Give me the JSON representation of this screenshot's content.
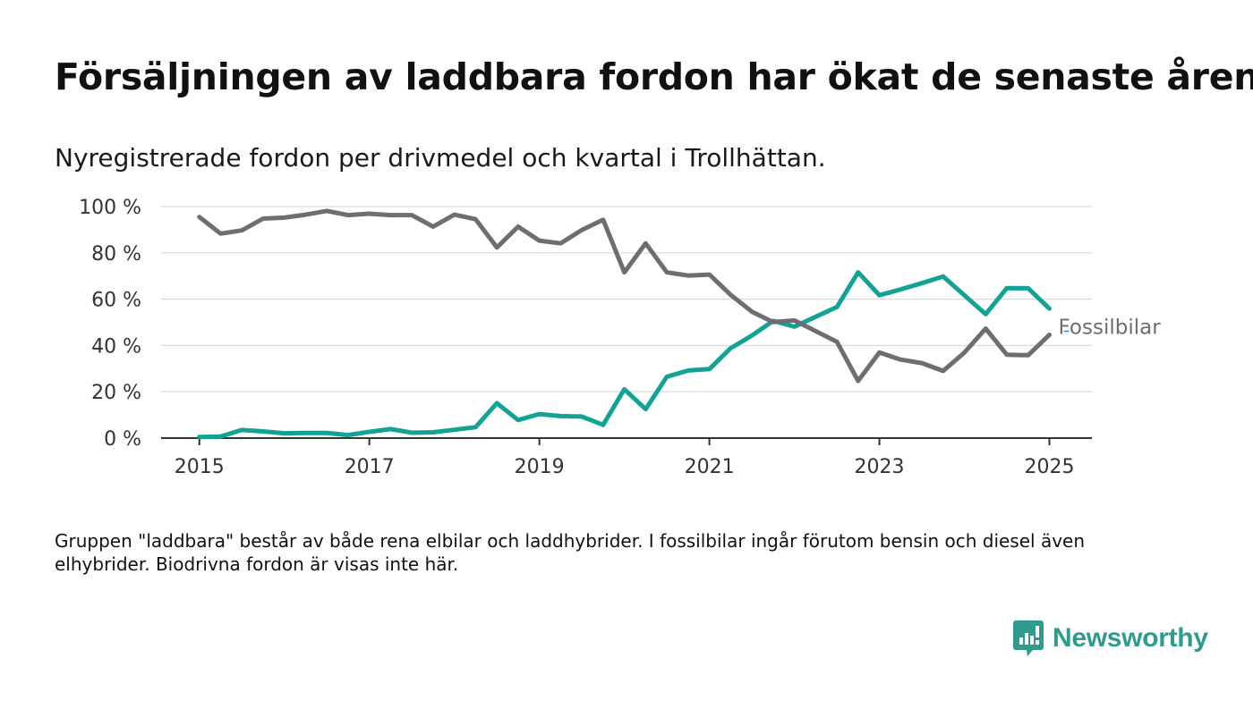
{
  "header": {
    "title": "Försäljningen av laddbara fordon har ökat de senaste åren",
    "subtitle": "Nyregistrerade fordon per drivmedel och kvartal i Trollhättan."
  },
  "footer": {
    "note": "Gruppen \"laddbara\" består av både rena elbilar och laddhybrider. I fossilbilar ingår förutom bensin och diesel även elhybrider. Biodrivna fordon är visas inte här.",
    "brand": "Newsworthy"
  },
  "colors": {
    "laddbara": "#12a394",
    "fossilbilar": "#6d6d72",
    "grid": "#d9d9d9",
    "axis": "#333333",
    "brand": "#2e9b8e"
  },
  "chart_data": {
    "type": "line",
    "x_unit": "year (quarterly data)",
    "x_ticks": [
      "2015",
      "2017",
      "2019",
      "2021",
      "2023",
      "2025"
    ],
    "y_ticks": [
      "0 %",
      "20 %",
      "40 %",
      "60 %",
      "80 %",
      "100 %"
    ],
    "ylim": [
      0,
      100
    ],
    "xlim": [
      2014.55,
      2025.5
    ],
    "grid": true,
    "x": [
      2015.0,
      2015.25,
      2015.5,
      2015.75,
      2016.0,
      2016.25,
      2016.5,
      2016.75,
      2017.0,
      2017.25,
      2017.5,
      2017.75,
      2018.0,
      2018.25,
      2018.5,
      2018.75,
      2019.0,
      2019.25,
      2019.5,
      2019.75,
      2020.0,
      2020.25,
      2020.5,
      2020.75,
      2021.0,
      2021.25,
      2021.5,
      2021.75,
      2022.0,
      2022.25,
      2022.5,
      2022.75,
      2023.0,
      2023.25,
      2023.5,
      2023.75,
      2024.0,
      2024.25,
      2024.5,
      2024.75,
      2025.0
    ],
    "series": [
      {
        "key": "fossilbilar",
        "name": "Fossilbilar",
        "values": [
          95.5,
          88.3,
          89.7,
          94.8,
          95.2,
          96.5,
          98.1,
          96.3,
          96.9,
          96.3,
          96.3,
          91.3,
          96.5,
          94.5,
          82.3,
          91.3,
          85.3,
          84.1,
          89.9,
          94.3,
          71.6,
          84.1,
          71.6,
          70.2,
          70.6,
          61.9,
          54.6,
          50.1,
          50.8,
          46.2,
          41.6,
          24.7,
          37.0,
          33.9,
          32.4,
          29.0,
          36.9,
          47.3,
          36.0,
          35.8,
          44.6
        ]
      },
      {
        "key": "laddbara",
        "name": "",
        "values": [
          0.5,
          0.7,
          3.5,
          2.9,
          2.1,
          2.2,
          2.2,
          1.3,
          2.7,
          3.9,
          2.3,
          2.5,
          3.6,
          4.7,
          15.1,
          7.8,
          10.4,
          9.5,
          9.3,
          5.7,
          21.1,
          12.5,
          26.5,
          29.2,
          29.8,
          38.8,
          44.3,
          50.6,
          48.1,
          52.4,
          56.6,
          71.6,
          61.7,
          64.2,
          66.9,
          69.8,
          61.7,
          53.5,
          64.8,
          64.7,
          55.9
        ]
      }
    ]
  }
}
